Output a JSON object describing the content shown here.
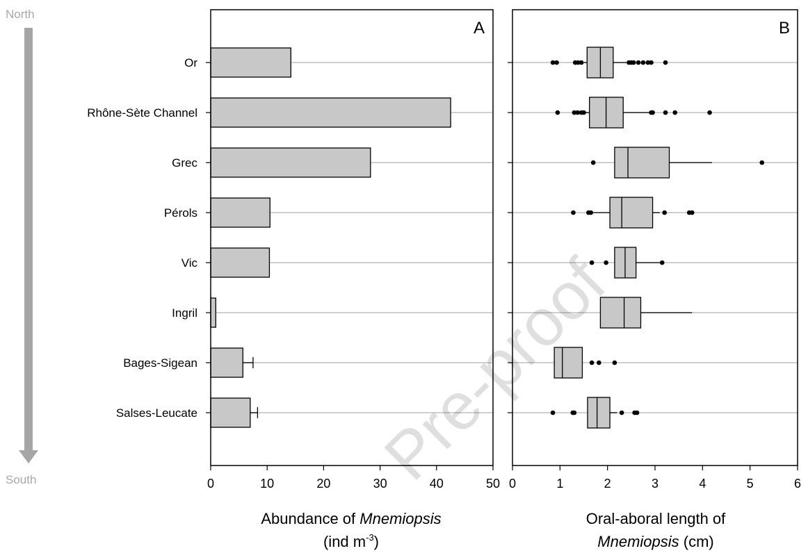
{
  "orientation": {
    "north_label": "North",
    "south_label": "South",
    "arrow_color": "#a6a6a6"
  },
  "watermark": "Pre-proof",
  "categories": [
    "Or",
    "Rhône-Sète Channel",
    "Grec",
    "Pérols",
    "Vic",
    "Ingril",
    "Bages-Sigean",
    "Salses-Leucate"
  ],
  "colors": {
    "fill": "#c8c8c8",
    "gridline": "#c0c0c0",
    "stroke": "#000000"
  },
  "chart_data": [
    {
      "type": "bar",
      "orientation": "horizontal",
      "panel_letter": "A",
      "xlabel_line1_prefix": "Abundance of ",
      "xlabel_line1_italic": "Mnemiopsis",
      "xlabel_line2": "(ind m",
      "xlabel_line2_sup": "-3",
      "xlabel_line2_suffix": ")",
      "xlim": [
        0,
        50
      ],
      "xticks": [
        0,
        10,
        20,
        30,
        40,
        50
      ],
      "grid": "horizontal lines at categories",
      "values": [
        14.2,
        42.5,
        28.3,
        10.5,
        10.4,
        0.9,
        5.7,
        7.0
      ],
      "error_upper": [
        null,
        null,
        null,
        null,
        null,
        null,
        7.5,
        8.3
      ]
    },
    {
      "type": "boxplot",
      "orientation": "horizontal",
      "panel_letter": "B",
      "xlabel_line1": "Oral-aboral length of",
      "xlabel_line2_italic": "Mnemiopsis",
      "xlabel_line2_suffix": " (cm)",
      "xlim": [
        0,
        6
      ],
      "xticks": [
        0,
        1,
        2,
        3,
        4,
        5,
        6
      ],
      "grid": "horizontal lines at categories",
      "boxes": [
        {
          "whisker_low": 1.5,
          "q1": 1.57,
          "median": 1.85,
          "q3": 2.12,
          "whisker_high": 2.4,
          "outliers": [
            0.85,
            0.93,
            1.32,
            1.38,
            1.45,
            2.45,
            2.5,
            2.55,
            2.65,
            2.75,
            2.85,
            2.92,
            3.22
          ]
        },
        {
          "whisker_low": 1.5,
          "q1": 1.62,
          "median": 1.97,
          "q3": 2.33,
          "whisker_high": 2.9,
          "outliers": [
            0.95,
            1.3,
            1.37,
            1.45,
            1.5,
            2.92,
            2.95,
            3.22,
            3.42,
            4.15
          ]
        },
        {
          "whisker_low": 2.15,
          "q1": 2.15,
          "median": 2.43,
          "q3": 3.3,
          "whisker_high": 4.2,
          "outliers": [
            1.7,
            5.25
          ]
        },
        {
          "whisker_low": 1.7,
          "q1": 2.05,
          "median": 2.3,
          "q3": 2.95,
          "whisker_high": 3.1,
          "outliers": [
            1.28,
            1.6,
            1.65,
            3.2,
            3.72,
            3.78
          ]
        },
        {
          "whisker_low": 2.15,
          "q1": 2.15,
          "median": 2.37,
          "q3": 2.6,
          "whisker_high": 3.1,
          "outliers": [
            1.67,
            1.97,
            3.15
          ]
        },
        {
          "whisker_low": 1.85,
          "q1": 1.85,
          "median": 2.35,
          "q3": 2.7,
          "whisker_high": 3.78,
          "outliers": []
        },
        {
          "whisker_low": 0.88,
          "q1": 0.88,
          "median": 1.05,
          "q3": 1.47,
          "whisker_high": 1.47,
          "outliers": [
            1.67,
            1.82,
            2.15
          ]
        },
        {
          "whisker_low": 1.58,
          "q1": 1.58,
          "median": 1.78,
          "q3": 2.05,
          "whisker_high": 2.2,
          "outliers": [
            0.85,
            1.27,
            1.3,
            2.3,
            2.57,
            2.62
          ]
        }
      ]
    }
  ]
}
